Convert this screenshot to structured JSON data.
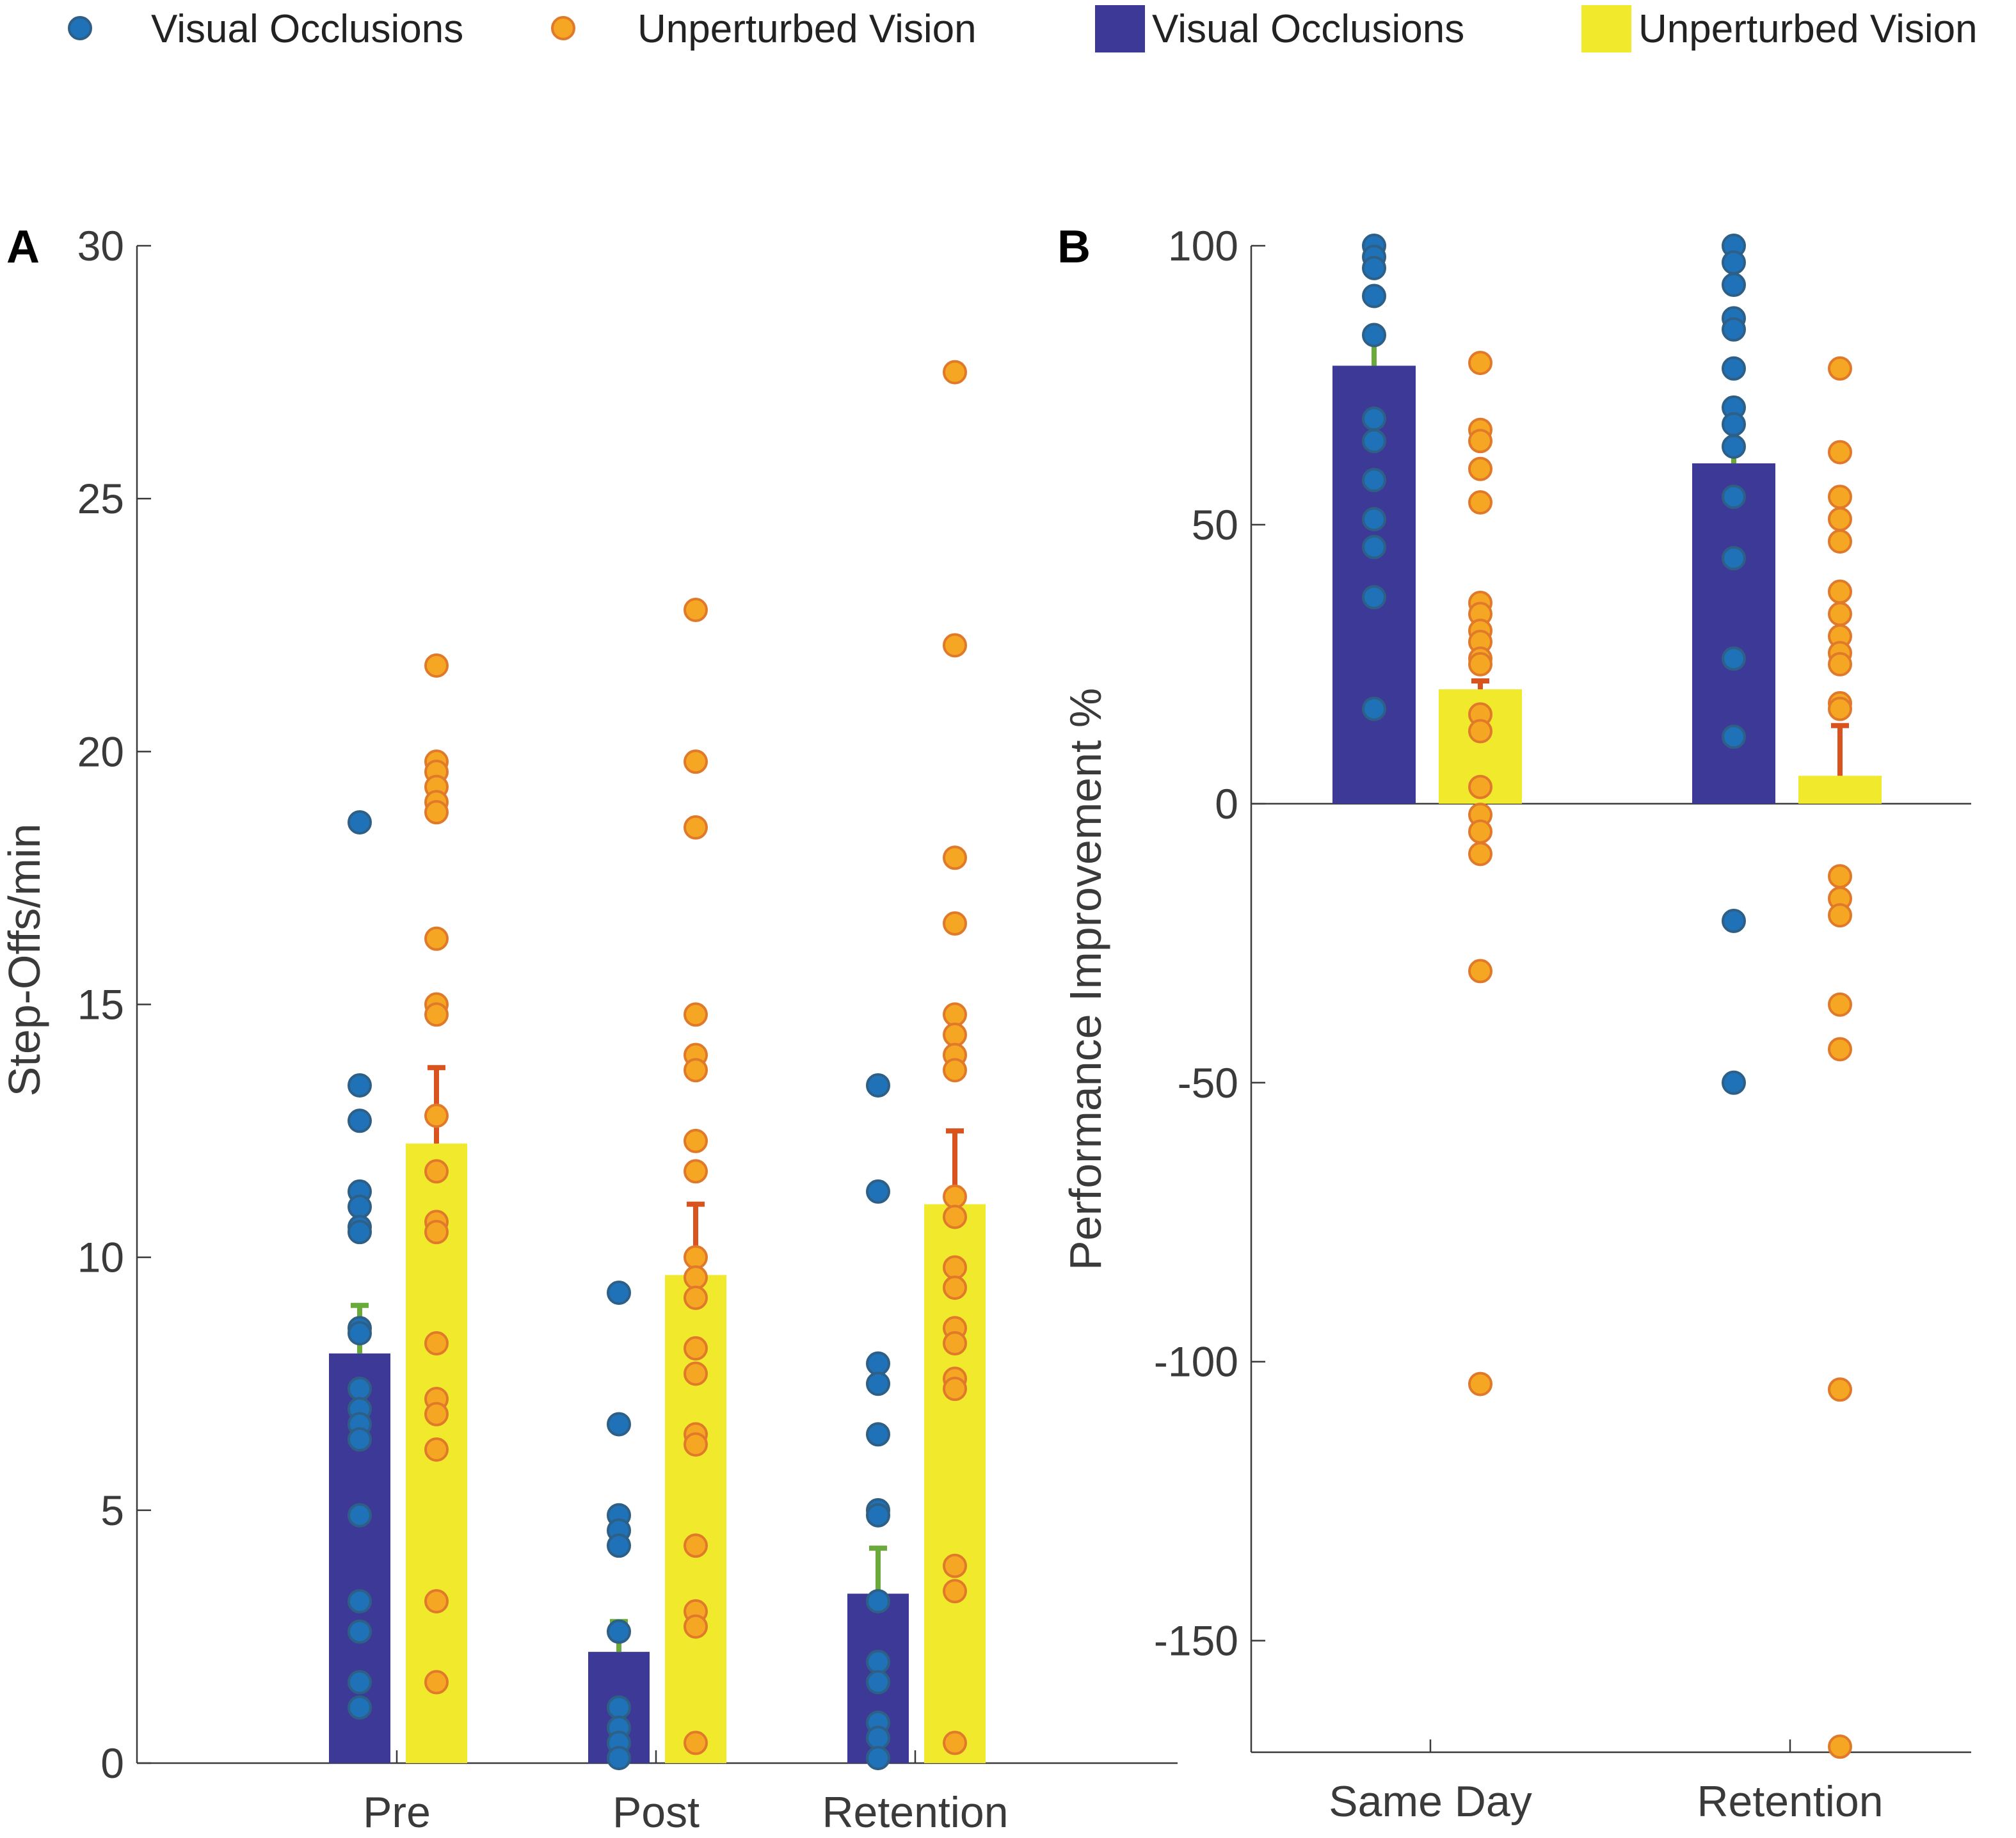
{
  "legend": [
    {
      "kind": "dot",
      "label": "Visual Occlusions",
      "color": "#1f72b8",
      "edge": "#2e5f87"
    },
    {
      "kind": "dot",
      "label": "Unperturbed Vision",
      "color": "#f5a623",
      "edge": "#e07a2a"
    },
    {
      "kind": "bar",
      "label": "Visual Occlusions",
      "color": "#3d3a97"
    },
    {
      "kind": "bar",
      "label": "Unperturbed Vision",
      "color": "#f0e92c"
    }
  ],
  "colors": {
    "occlusion_bar": "#3d3a97",
    "unperturbed_bar": "#f0e92c",
    "occlusion_dot": "#1f72b8",
    "occlusion_dot_edge": "#2e5f87",
    "unperturbed_dot": "#f5a623",
    "unperturbed_dot_edge": "#e07a2a",
    "occlusion_err": "#6aaa3a",
    "unperturbed_err": "#d9531e"
  },
  "chart_data": [
    {
      "panel": "A",
      "type": "bar",
      "ylabel": "Step-Offs/min",
      "xlabel": "",
      "ylim": [
        0,
        30
      ],
      "yticks": [
        0,
        5,
        10,
        15,
        20,
        25,
        30
      ],
      "categories": [
        "Pre",
        "Post",
        "Retention"
      ],
      "series": [
        {
          "name": "Visual Occlusions",
          "values": [
            8.1,
            2.2,
            3.35
          ],
          "errors": [
            0.95,
            0.6,
            0.9
          ],
          "points": [
            [
              18.6,
              13.4,
              12.7,
              11.3,
              11.0,
              10.6,
              10.5,
              8.6,
              8.5,
              7.4,
              7.0,
              6.7,
              6.4,
              4.9,
              3.2,
              2.6,
              1.6,
              1.1
            ],
            [
              9.3,
              6.7,
              4.9,
              4.6,
              4.3,
              2.6,
              1.1,
              0.7,
              0.4,
              0.1
            ],
            [
              13.4,
              11.3,
              7.9,
              7.5,
              6.5,
              5.0,
              4.9,
              3.2,
              2.0,
              1.6,
              0.8,
              0.5,
              0.1
            ]
          ]
        },
        {
          "name": "Unperturbed Vision",
          "values": [
            12.25,
            9.65,
            11.05
          ],
          "errors": [
            1.5,
            1.4,
            1.45
          ],
          "points": [
            [
              21.7,
              19.8,
              19.6,
              19.3,
              19.0,
              18.8,
              16.3,
              15.0,
              14.8,
              12.8,
              11.7,
              10.7,
              10.5,
              8.3,
              7.2,
              6.9,
              6.2,
              3.2,
              1.6
            ],
            [
              22.8,
              19.8,
              18.5,
              14.8,
              14.0,
              13.7,
              12.3,
              11.7,
              10.0,
              9.6,
              9.2,
              8.2,
              7.7,
              6.5,
              6.3,
              4.3,
              3.0,
              2.7,
              0.4
            ],
            [
              27.5,
              22.1,
              17.9,
              16.6,
              14.8,
              14.4,
              14.0,
              13.7,
              11.2,
              10.8,
              9.8,
              9.4,
              8.6,
              8.3,
              7.6,
              7.4,
              3.9,
              3.4,
              0.4
            ]
          ]
        }
      ]
    },
    {
      "panel": "B",
      "type": "bar",
      "ylabel": "Performance Improvement %",
      "xlabel": "",
      "ylim": [
        -170,
        100
      ],
      "yticks": [
        -150,
        -100,
        -50,
        0,
        50,
        100
      ],
      "categories": [
        "Same Day",
        "Retention"
      ],
      "series": [
        {
          "name": "Visual Occlusions",
          "values": [
            78.5,
            61
          ],
          "errors": [
            6.5,
            9
          ],
          "points": [
            [
              100,
              98,
              96,
              91,
              84,
              69,
              65,
              58,
              51,
              46,
              37,
              17
            ],
            [
              100,
              97,
              93,
              87,
              85,
              78,
              71,
              68,
              64,
              55,
              44,
              26,
              12,
              -21,
              -50
            ]
          ]
        },
        {
          "name": "Unperturbed Vision",
          "values": [
            20.5,
            5
          ],
          "errors": [
            1.5,
            9
          ],
          "points": [
            [
              79,
              67,
              65,
              60,
              54,
              36,
              34,
              31,
              29,
              26,
              25,
              16,
              13,
              3,
              -2,
              -5,
              -9,
              -30,
              -104
            ],
            [
              78,
              63,
              55,
              51,
              47,
              38,
              34,
              30,
              27,
              25,
              18,
              17,
              -13,
              -17,
              -20,
              -36,
              -44,
              -105,
              -169
            ]
          ]
        }
      ]
    }
  ]
}
